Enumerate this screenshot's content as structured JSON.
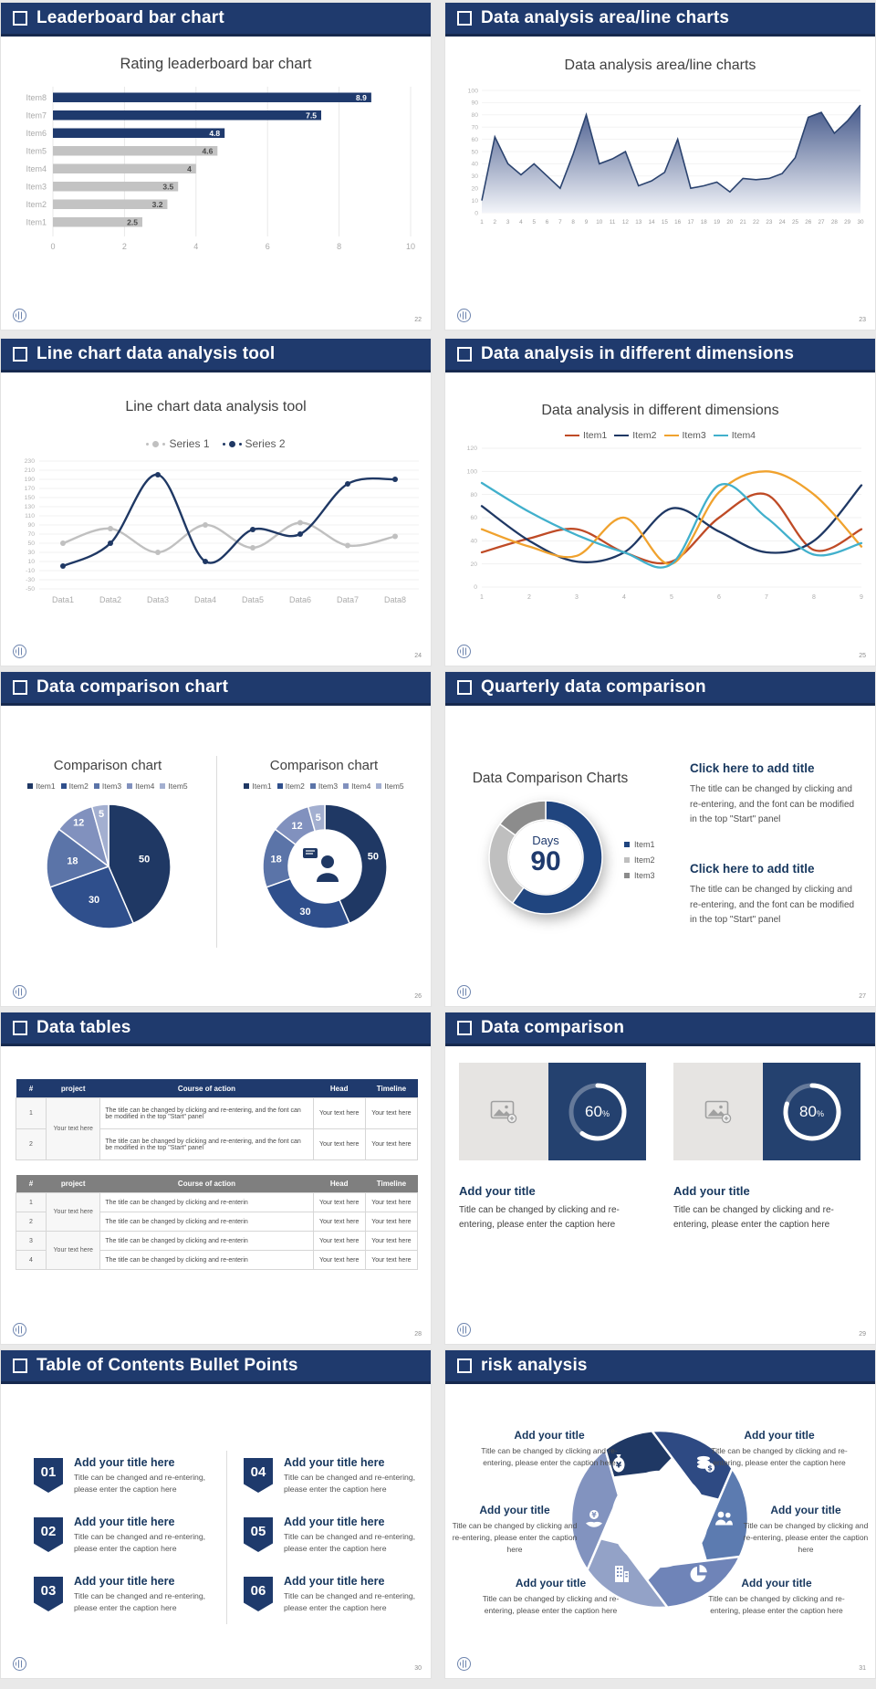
{
  "page_bg": "#E9E9E9",
  "theme": {
    "header_bg": "#1F3A6D",
    "navy": "#1F3864",
    "gray_bar": "#C3C3C3",
    "accent_text": "#17375E"
  },
  "slides": [
    {
      "header": "Leaderboard bar chart",
      "page": "22",
      "chart_title": "Rating leaderboard bar chart",
      "chart_data": {
        "type": "bar",
        "orientation": "horizontal",
        "categories_top_to_bottom": [
          "Item8",
          "Item7",
          "Item6",
          "Item5",
          "Item4",
          "Item3",
          "Item2",
          "Item1"
        ],
        "values": [
          8.9,
          7.5,
          4.8,
          4.6,
          4,
          3.5,
          3.2,
          2.5
        ],
        "bar_colors": [
          "#1F3A6D",
          "#1F3A6D",
          "#1F3A6D",
          "#C3C3C3",
          "#C3C3C3",
          "#C3C3C3",
          "#C3C3C3",
          "#C3C3C3"
        ],
        "xlim": [
          0,
          10
        ],
        "xticks": [
          0,
          2,
          4,
          6,
          8,
          10
        ],
        "grid": "vertical"
      }
    },
    {
      "header": "Data analysis area/line charts",
      "page": "23",
      "chart_title": "Data analysis area/line charts",
      "chart_data": {
        "type": "area",
        "x": [
          1,
          2,
          3,
          4,
          5,
          6,
          7,
          8,
          9,
          10,
          11,
          12,
          13,
          14,
          15,
          16,
          17,
          18,
          19,
          20,
          21,
          22,
          23,
          24,
          25,
          26,
          27,
          28,
          29,
          30
        ],
        "values": [
          10,
          62,
          40,
          31,
          40,
          30,
          20,
          48,
          80,
          40,
          44,
          50,
          22,
          26,
          33,
          60,
          20,
          22,
          25,
          17,
          28,
          27,
          28,
          32,
          45,
          78,
          82,
          65,
          75,
          88
        ],
        "ylim": [
          0,
          100
        ],
        "yticks": [
          0,
          10,
          20,
          30,
          40,
          50,
          60,
          70,
          80,
          90,
          100
        ],
        "line_color": "#2B436F",
        "fill_from": "#44588A",
        "fill_to": "#F2F4F9"
      }
    },
    {
      "header": "Line chart data analysis tool",
      "page": "24",
      "chart_title": "Line chart data analysis tool",
      "chart_data": {
        "type": "line",
        "smooth": true,
        "markers": true,
        "categories": [
          "Data1",
          "Data2",
          "Data3",
          "Data4",
          "Data5",
          "Data6",
          "Data7",
          "Data8"
        ],
        "ylim": [
          -50,
          230
        ],
        "ytick_step": 20,
        "series": [
          {
            "name": "Series 1",
            "color": "#C0C0C0",
            "values": [
              50,
              82,
              30,
              90,
              40,
              95,
              45,
              65
            ]
          },
          {
            "name": "Series 2",
            "color": "#1F3864",
            "values": [
              0,
              50,
              200,
              10,
              80,
              70,
              180,
              190
            ]
          }
        ]
      }
    },
    {
      "header": "Data analysis in different dimensions",
      "page": "25",
      "chart_title": "Data analysis in different dimensions",
      "chart_data": {
        "type": "line",
        "smooth": true,
        "markers": false,
        "x": [
          1,
          2,
          3,
          4,
          5,
          6,
          7,
          8,
          9
        ],
        "ylim": [
          0,
          120
        ],
        "ytick_step": 20,
        "series": [
          {
            "name": "Item1",
            "color": "#BF4B26",
            "values": [
              30,
              42,
              50,
              30,
              22,
              60,
              80,
              32,
              50
            ]
          },
          {
            "name": "Item2",
            "color": "#1F3864",
            "values": [
              70,
              40,
              22,
              30,
              68,
              48,
              30,
              40,
              88
            ]
          },
          {
            "name": "Item3",
            "color": "#F0A22E",
            "values": [
              50,
              35,
              27,
              60,
              20,
              82,
              100,
              80,
              35
            ]
          },
          {
            "name": "Item4",
            "color": "#41B0CC",
            "values": [
              90,
              65,
              45,
              30,
              20,
              88,
              60,
              28,
              38
            ]
          }
        ]
      }
    },
    {
      "header": "Data comparison chart",
      "page": "26",
      "left_title": "Comparison chart",
      "right_title": "Comparison chart",
      "legend": [
        "Item1",
        "Item2",
        "Item3",
        "Item4",
        "Item5"
      ],
      "chart_data": {
        "type": "pie",
        "variants": [
          "pie",
          "donut-with-person-icon"
        ],
        "labels": [
          "Item1",
          "Item2",
          "Item3",
          "Item4",
          "Item5"
        ],
        "values": [
          50,
          30,
          18,
          12,
          5
        ],
        "colors": [
          "#1F3864",
          "#2F4F8C",
          "#5B74A8",
          "#8191BE",
          "#A3AFD0"
        ]
      }
    },
    {
      "header": "Quarterly data comparison",
      "page": "27",
      "chart_title": "Data Comparison Charts",
      "center_label": "Days",
      "center_value": "90",
      "legend": [
        "Item1",
        "Item2",
        "Item3"
      ],
      "chart_data": {
        "type": "donut",
        "values": [
          60,
          25,
          15
        ],
        "colors": [
          "#20457F",
          "#BFBFBF",
          "#8C8C8C"
        ],
        "center_text": "Days 90"
      },
      "blocks": [
        {
          "title": "Click here to add title",
          "body": "The title can be changed by clicking and re-entering, and the font can be modified in the top \"Start\" panel"
        },
        {
          "title": "Click here to add title",
          "body": "The title can be changed by clicking and re-entering, and the font can be modified in the top \"Start\" panel"
        }
      ]
    },
    {
      "header": "Data tables",
      "page": "28",
      "t1": {
        "headers": [
          "#",
          "project",
          "Course of action",
          "Head",
          "Timeline"
        ],
        "r1": {
          "num": "1",
          "project": "Your text here",
          "course": "The title can be changed by clicking and re-entering, and the font can be modified in the top \"Start\" panel",
          "head": "Your text here",
          "timeline": "Your text here"
        },
        "r2": {
          "num": "2",
          "course": "The title can be changed by clicking and re-entering, and the font can be modified in the top \"Start\" panel",
          "head": "Your text here",
          "timeline": "Your text here"
        }
      },
      "t2": {
        "headers": [
          "#",
          "project",
          "Course of action",
          "Head",
          "Timeline"
        ],
        "r1": {
          "num": "1",
          "project": "Your text here",
          "course": "The title can be changed by clicking and re-enterin",
          "head": "Your text here",
          "timeline": "Your text here"
        },
        "r2": {
          "num": "2",
          "course": "The title can be changed by clicking and re-enterin",
          "head": "Your text here",
          "timeline": "Your text here"
        },
        "r3": {
          "num": "3",
          "project": "Your text here",
          "course": "The title can be changed by clicking and re-enterin",
          "head": "Your text here",
          "timeline": "Your text here"
        },
        "r4": {
          "num": "4",
          "course": "The title can be changed by clicking and re-enterin",
          "head": "Your text here",
          "timeline": "Your text here"
        }
      }
    },
    {
      "header": "Data comparison",
      "page": "29",
      "cards": [
        {
          "percent": "60",
          "unit": "%",
          "title": "Add your title",
          "body": "Title can be changed by clicking and re-entering, please enter the caption here"
        },
        {
          "percent": "80",
          "unit": "%",
          "title": "Add your title",
          "body": "Title can be changed by clicking and re-entering, please enter the caption here"
        }
      ],
      "chart_data": {
        "type": "progress-rings",
        "values": [
          60,
          80
        ],
        "ring_color": "#FFFFFF",
        "box_color": "#24416F"
      }
    },
    {
      "header": "Table of Contents Bullet Points",
      "page": "30",
      "items": [
        {
          "num": "01",
          "title": "Add your title here",
          "caption": "Title can be changed and re-entering, please enter the caption here"
        },
        {
          "num": "02",
          "title": "Add your title here",
          "caption": "Title can be changed and re-entering, please enter the caption here"
        },
        {
          "num": "03",
          "title": "Add your title here",
          "caption": "Title can be changed and re-entering, please enter the caption here"
        },
        {
          "num": "04",
          "title": "Add your title here",
          "caption": "Title can be changed and re-entering, please enter the caption here"
        },
        {
          "num": "05",
          "title": "Add your title here",
          "caption": "Title can be changed and re-entering, please enter the caption here"
        },
        {
          "num": "06",
          "title": "Add your title here",
          "caption": "Title can be changed and re-entering, please enter the caption here"
        }
      ]
    },
    {
      "header": "risk analysis",
      "page": "31",
      "blocks": [
        {
          "pos": "top-left",
          "icon": "money-bag-icon",
          "title": "Add your title",
          "caption": "Title can be changed by clicking and re-entering, please enter the caption here"
        },
        {
          "pos": "top-right",
          "icon": "coins-icon",
          "title": "Add your title",
          "caption": "Title can be changed by clicking and re-entering, please enter the caption here"
        },
        {
          "pos": "mid-left",
          "icon": "hand-coin-icon",
          "title": "Add your title",
          "caption": "Title can be changed by clicking and re-entering, please enter the caption here"
        },
        {
          "pos": "mid-right",
          "icon": "people-icon",
          "title": "Add your title",
          "caption": "Title can be changed by clicking and re-entering, please enter the caption here"
        },
        {
          "pos": "bottom-left",
          "icon": "building-icon",
          "title": "Add your title",
          "caption": "Title can be changed by clicking and re-entering, please enter the caption here"
        },
        {
          "pos": "bottom-right",
          "icon": "pie-chart-icon",
          "title": "Add your title",
          "caption": "Title can be changed by clicking and re-entering, please enter the caption here"
        }
      ],
      "wheel_colors": [
        "#1F3864",
        "#2E4A83",
        "#5C7BB0",
        "#6F84B8",
        "#93A2C7",
        "#8293BF"
      ]
    }
  ]
}
